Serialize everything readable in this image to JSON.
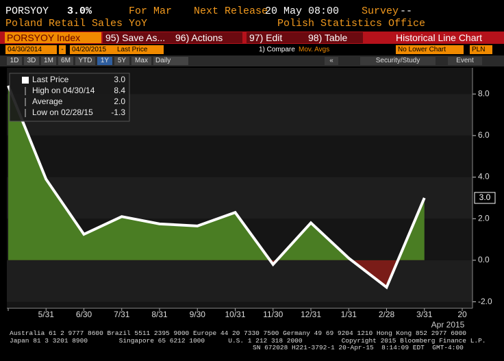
{
  "header": {
    "ticker": "PORSYOY",
    "price": "3.0%",
    "period": "For Mar",
    "next_release_label": "Next Release",
    "next_release": "20 May 08:00",
    "survey_label": "Survey",
    "survey": "--",
    "name": "Poland Retail Sales YoY",
    "source": "Polish Statistics Office"
  },
  "toolbar": {
    "security": "PORSYOY Index",
    "buttons": [
      "95) Save As...",
      "96) Actions",
      "97) Edit",
      "98) Table"
    ],
    "view": "Historical Line Chart"
  },
  "range": {
    "start": "04/30/2014",
    "separator": "-",
    "end": "04/20/2015",
    "field": "Last Price",
    "compare": "1) Compare",
    "mov_avgs": "Mov. Avgs",
    "lower_chart": "No Lower Chart",
    "currency": "PLN"
  },
  "periods": [
    "1D",
    "3D",
    "1M",
    "6M",
    "YTD",
    "1Y",
    "5Y",
    "Max"
  ],
  "selected_period": "1Y",
  "frequency": "Daily",
  "right_tools": [
    "«",
    "Security/Study",
    "Event"
  ],
  "chart_data": {
    "type": "area-line",
    "categories": [
      null,
      "5/31",
      "6/30",
      "7/31",
      "8/31",
      "9/30",
      "10/31",
      "11/30",
      "12/31",
      "1/31",
      "2/28",
      "3/31",
      "20"
    ],
    "x_period_label": "Apr 2015",
    "values": [
      8.4,
      3.9,
      1.25,
      2.1,
      1.75,
      1.65,
      2.3,
      -0.2,
      1.8,
      0.1,
      -1.3,
      3.0,
      null
    ],
    "line_color": "#ffffff",
    "positive_color": "#4a7d23",
    "negative_color": "#7a1c18",
    "ylim": [
      -2.31,
      9.26
    ],
    "yticks": [
      {
        "value": -2,
        "label": "-2.0"
      },
      {
        "value": 0,
        "label": "0.0"
      },
      {
        "value": 2,
        "label": "2.0"
      },
      {
        "value": 4,
        "label": "4.0"
      },
      {
        "value": 6,
        "label": "6.0"
      },
      {
        "value": 8,
        "label": "8.0"
      }
    ],
    "grid": false,
    "legend": [
      {
        "label": "Last Price",
        "value": "3.0"
      },
      {
        "label": "High on 04/30/14",
        "value": "8.4"
      },
      {
        "label": "Average",
        "value": "2.0"
      },
      {
        "label": "Low on 02/28/15",
        "value": "-1.3"
      }
    ]
  },
  "footer": [
    "Australia 61 2 9777 8600 Brazil 5511 2395 9000 Europe 44 20 7330 7500 Germany 49 69 9204 1210 Hong Kong 852 2977 6000",
    "Japan 81 3 3201 8900        Singapore 65 6212 1000      U.S. 1 212 318 2000          Copyright 2015 Bloomberg Finance L.P.",
    "SN 672028 H221-3792-1 20-Apr-15  8:14:09 EDT  GMT-4:00"
  ]
}
